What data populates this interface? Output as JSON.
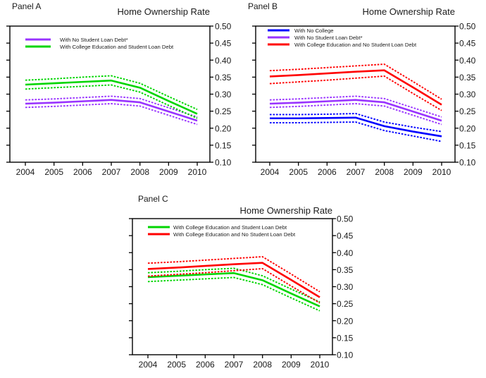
{
  "figure": {
    "background": "#ffffff",
    "text_color": "#1a1a1a",
    "axis_color": "#000000"
  },
  "chart_data": [
    {
      "type": "line",
      "panel_label": "Panel A",
      "axis_title": "Home Ownership Rate",
      "x": [
        2004,
        2005,
        2006,
        2007,
        2008,
        2009,
        2010
      ],
      "x_tick_labels": [
        "2004",
        "2005",
        "2006",
        "2007",
        "2008",
        "2009",
        "2010"
      ],
      "ylim": [
        0.1,
        0.5
      ],
      "y_ticks": [
        "0.10",
        "0.15",
        "0.20",
        "0.25",
        "0.30",
        "0.35",
        "0.40",
        "0.45",
        "0.50"
      ],
      "grid": false,
      "legend_position": "top-left-inside",
      "y_axis_side": "right",
      "series": [
        {
          "name": "With No Student Loan Debt*",
          "color": "#9933ff",
          "values": [
            0.272,
            0.275,
            0.279,
            0.283,
            0.276,
            0.249,
            0.222
          ],
          "upper_band": [
            0.283,
            0.286,
            0.29,
            0.294,
            0.287,
            0.26,
            0.233
          ],
          "lower_band": [
            0.261,
            0.264,
            0.268,
            0.272,
            0.265,
            0.238,
            0.211
          ]
        },
        {
          "name": "With College Education and Student Loan Debt",
          "color": "#00d500",
          "values": [
            0.328,
            0.332,
            0.336,
            0.34,
            0.319,
            0.28,
            0.242
          ],
          "upper_band": [
            0.341,
            0.345,
            0.35,
            0.354,
            0.332,
            0.293,
            0.255
          ],
          "lower_band": [
            0.315,
            0.319,
            0.323,
            0.327,
            0.306,
            0.267,
            0.229
          ]
        }
      ]
    },
    {
      "type": "line",
      "panel_label": "Panel B",
      "axis_title": "Home Ownership Rate",
      "x": [
        2004,
        2005,
        2006,
        2007,
        2008,
        2009,
        2010
      ],
      "x_tick_labels": [
        "2004",
        "2005",
        "2006",
        "2007",
        "2008",
        "2009",
        "2010"
      ],
      "ylim": [
        0.1,
        0.5
      ],
      "y_ticks": [
        "0.10",
        "0.15",
        "0.20",
        "0.25",
        "0.30",
        "0.35",
        "0.40",
        "0.45",
        "0.50"
      ],
      "grid": false,
      "legend_position": "top-left-inside",
      "y_axis_side": "right",
      "series": [
        {
          "name": "With No College",
          "color": "#0000ff",
          "values": [
            0.229,
            0.229,
            0.23,
            0.231,
            0.206,
            0.19,
            0.176
          ],
          "upper_band": [
            0.24,
            0.24,
            0.241,
            0.243,
            0.218,
            0.203,
            0.19
          ],
          "lower_band": [
            0.216,
            0.216,
            0.217,
            0.218,
            0.193,
            0.177,
            0.161
          ]
        },
        {
          "name": "With No Student Loan Debt*",
          "color": "#9933ff",
          "values": [
            0.272,
            0.275,
            0.279,
            0.283,
            0.276,
            0.249,
            0.222
          ],
          "upper_band": [
            0.283,
            0.286,
            0.29,
            0.294,
            0.287,
            0.26,
            0.233
          ],
          "lower_band": [
            0.261,
            0.264,
            0.268,
            0.272,
            0.265,
            0.238,
            0.211
          ]
        },
        {
          "name": "With College Education and No Student Loan Debt",
          "color": "#ff0000",
          "values": [
            0.352,
            0.356,
            0.361,
            0.366,
            0.37,
            0.32,
            0.269
          ],
          "upper_band": [
            0.369,
            0.373,
            0.378,
            0.383,
            0.388,
            0.337,
            0.285
          ],
          "lower_band": [
            0.331,
            0.336,
            0.341,
            0.347,
            0.353,
            0.302,
            0.252
          ]
        }
      ]
    },
    {
      "type": "line",
      "panel_label": "Panel C",
      "axis_title": "Home Ownership Rate",
      "x": [
        2004,
        2005,
        2006,
        2007,
        2008,
        2009,
        2010
      ],
      "x_tick_labels": [
        "2004",
        "2005",
        "2006",
        "2007",
        "2008",
        "2009",
        "2010"
      ],
      "ylim": [
        0.1,
        0.5
      ],
      "y_ticks": [
        "0.10",
        "0.15",
        "0.20",
        "0.25",
        "0.30",
        "0.35",
        "0.40",
        "0.45",
        "0.50"
      ],
      "grid": false,
      "legend_position": "top-left-inside",
      "y_axis_side": "right",
      "series": [
        {
          "name": "With College Education and Student Loan Debt",
          "color": "#00d500",
          "values": [
            0.328,
            0.332,
            0.336,
            0.34,
            0.319,
            0.28,
            0.242
          ],
          "upper_band": [
            0.341,
            0.345,
            0.35,
            0.354,
            0.332,
            0.293,
            0.255
          ],
          "lower_band": [
            0.315,
            0.319,
            0.323,
            0.327,
            0.306,
            0.267,
            0.229
          ]
        },
        {
          "name": "With College Education and No Student Loan Debt",
          "color": "#ff0000",
          "values": [
            0.352,
            0.356,
            0.361,
            0.366,
            0.37,
            0.32,
            0.269
          ],
          "upper_band": [
            0.369,
            0.373,
            0.378,
            0.383,
            0.388,
            0.337,
            0.285
          ],
          "lower_band": [
            0.331,
            0.336,
            0.341,
            0.347,
            0.353,
            0.302,
            0.252
          ]
        }
      ]
    }
  ]
}
